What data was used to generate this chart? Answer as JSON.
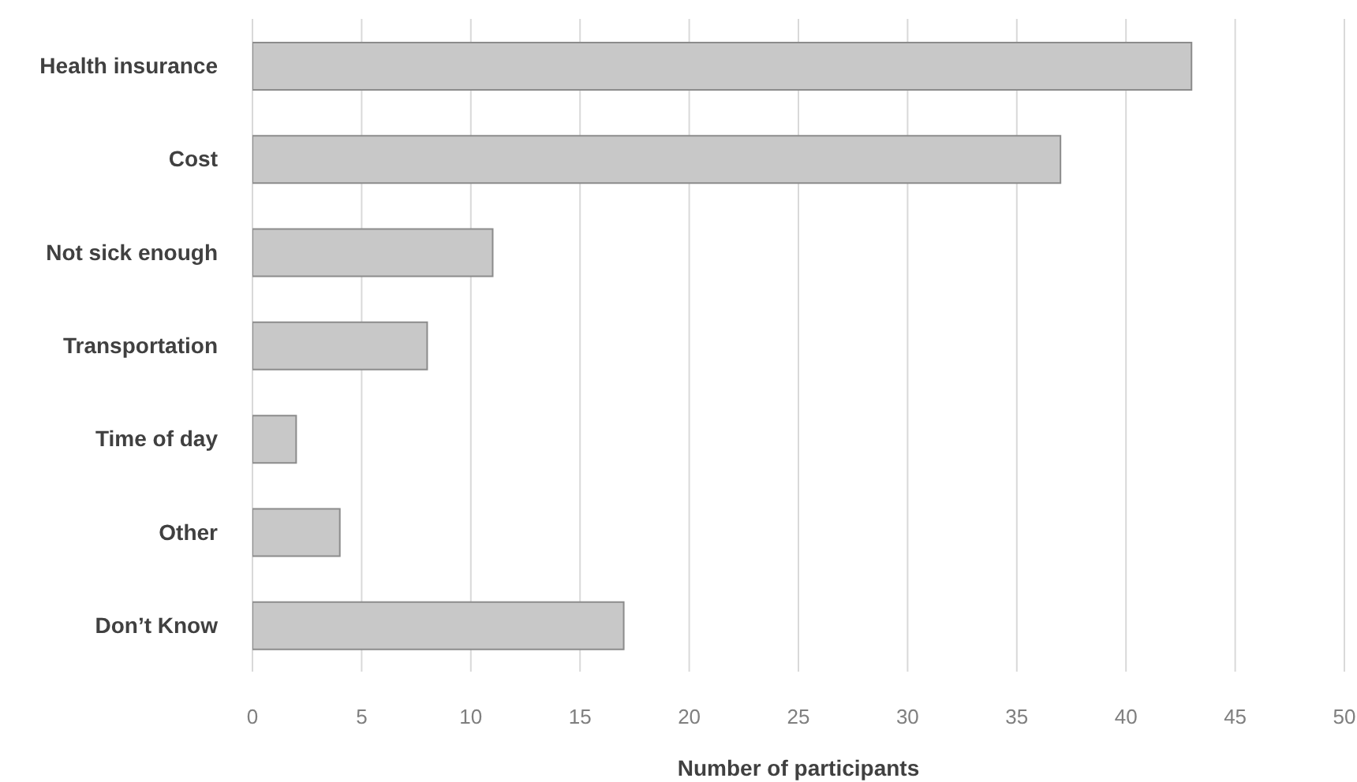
{
  "chart_data": {
    "type": "bar",
    "orientation": "horizontal",
    "xlabel": "Number of participants",
    "categories": [
      "Health insurance",
      "Cost",
      "Not sick enough",
      "Transportation",
      "Time of day",
      "Other",
      "Don’t Know"
    ],
    "values": [
      43,
      37,
      11,
      8,
      2,
      4,
      17
    ],
    "color": "#c8c8c8",
    "xlim": [
      0,
      50
    ],
    "xticks": [
      0,
      5,
      10,
      15,
      20,
      25,
      30,
      35,
      40,
      45,
      50
    ],
    "grid": "x"
  }
}
